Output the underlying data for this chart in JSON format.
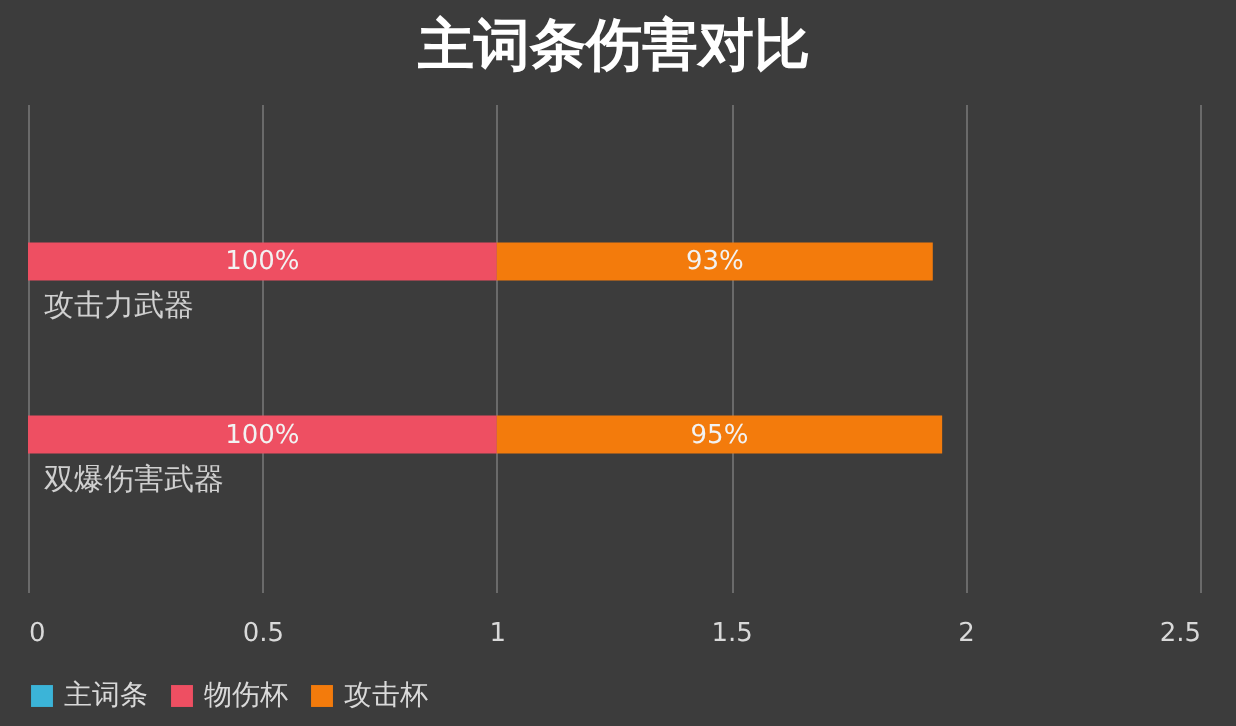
{
  "chart_data": {
    "type": "bar",
    "orientation": "horizontal",
    "stacked": true,
    "title": "主词条伤害对比",
    "categories": [
      "攻击力武器",
      "双爆伤害武器"
    ],
    "series": [
      {
        "name": "主词条",
        "color": "#3bb4d8",
        "values": [
          null,
          null
        ]
      },
      {
        "name": "物伤杯",
        "color": "#ee4f62",
        "values": [
          1,
          1
        ],
        "value_labels": [
          "100%",
          "100%"
        ]
      },
      {
        "name": "攻击杯",
        "color": "#f37b0c",
        "values": [
          0.93,
          0.95
        ],
        "value_labels": [
          "93%",
          "95%"
        ]
      }
    ],
    "xlim": [
      0,
      2.5
    ],
    "xticks": [
      0,
      0.5,
      1,
      1.5,
      2,
      2.5
    ],
    "grid": "x",
    "legend": "bottom"
  }
}
